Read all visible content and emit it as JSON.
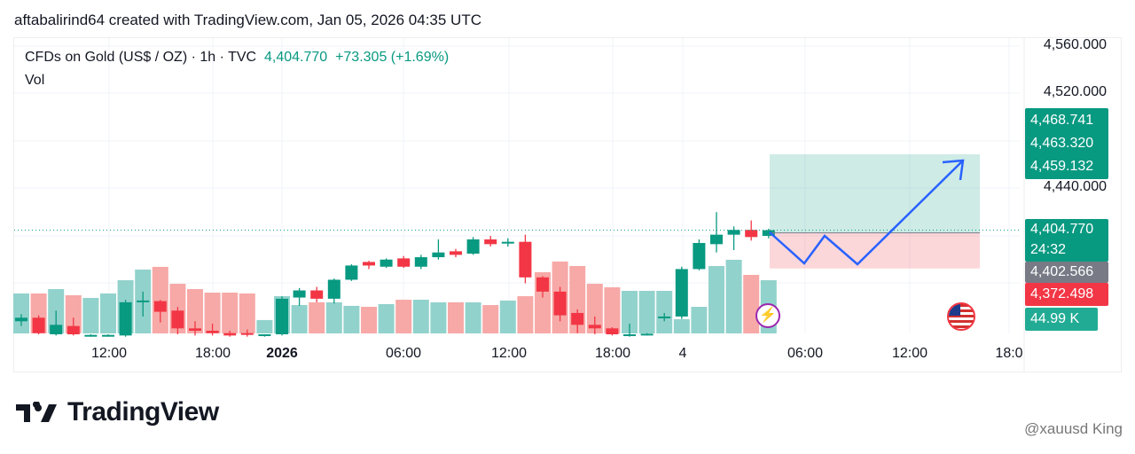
{
  "header": {
    "text": "aftabalirind64 created with TradingView.com, Jan 05, 2026 04:35 UTC"
  },
  "legend": {
    "symbol": "CFDs on Gold (US$ / OZ) · 1h · TVC",
    "price": "4,404.770",
    "change": "+73.305 (+1.69%)",
    "vol": "Vol"
  },
  "price_axis": [
    "4,560.000",
    "4,520.000",
    "4,440.000"
  ],
  "tags": {
    "target1": "4,468.741",
    "target2": "4,463.320",
    "target3": "4,459.132",
    "last": "4,404.770",
    "countdown": "24:32",
    "entry": "4,402.566",
    "stop": "4,372.498",
    "volume": "44.99 K"
  },
  "time_axis": [
    "12:00",
    "18:00",
    "2026",
    "06:00",
    "12:00",
    "18:00",
    "4",
    "06:00",
    "12:00",
    "18:0"
  ],
  "colors": {
    "up": "#089981",
    "down": "#f23645",
    "upVol": "#92d2cc",
    "downVol": "#f7a9a7",
    "arrow": "#2962ff"
  },
  "chart_data": {
    "type": "candlestick",
    "ylim": [
      4300,
      4560
    ],
    "candles": [
      [
        4328,
        4331,
        4334,
        4324
      ],
      [
        4331,
        4318,
        4333,
        4317
      ],
      [
        4317,
        4325,
        4337,
        4316
      ],
      [
        4324,
        4317,
        4331,
        4316
      ],
      [
        4316,
        4316.5,
        4317,
        4315
      ],
      [
        4316,
        4316.5,
        4317,
        4315
      ],
      [
        4316,
        4344,
        4346,
        4315
      ],
      [
        4345,
        4345.5,
        4353,
        4332
      ],
      [
        4345,
        4336,
        4346,
        4327
      ],
      [
        4337,
        4322,
        4340,
        4317
      ],
      [
        4322,
        4320,
        4328,
        4316
      ],
      [
        4320,
        4318,
        4326,
        4316
      ],
      [
        4318,
        4316,
        4320,
        4315
      ],
      [
        4318,
        4317,
        4321,
        4315
      ],
      [
        4316,
        4317,
        4317,
        4315
      ],
      [
        4317,
        4347,
        4349,
        4316
      ],
      [
        4348,
        4354,
        4356,
        4341
      ],
      [
        4354,
        4347,
        4357,
        4344
      ],
      [
        4347,
        4363,
        4364,
        4343
      ],
      [
        4363,
        4375,
        4376,
        4362
      ],
      [
        4378,
        4375,
        4379,
        4372
      ],
      [
        4374,
        4380,
        4381,
        4373
      ],
      [
        4381,
        4374,
        4383,
        4373
      ],
      [
        4374,
        4382,
        4384,
        4372
      ],
      [
        4382,
        4386,
        4397,
        4380
      ],
      [
        4387,
        4384,
        4389,
        4382
      ],
      [
        4385,
        4397,
        4399,
        4384
      ],
      [
        4397,
        4393,
        4400,
        4391
      ],
      [
        4394,
        4395,
        4398,
        4391
      ],
      [
        4395,
        4365,
        4401,
        4360
      ],
      [
        4365,
        4353,
        4366,
        4348
      ],
      [
        4353,
        4333,
        4357,
        4328
      ],
      [
        4335,
        4325,
        4338,
        4318
      ],
      [
        4325,
        4322,
        4332,
        4317
      ],
      [
        4322,
        4317,
        4323,
        4316
      ],
      [
        4316,
        4317,
        4326,
        4315
      ],
      [
        4317,
        4317.5,
        4318,
        4316
      ],
      [
        4331,
        4332,
        4335,
        4328
      ],
      [
        4332,
        4372,
        4374,
        4330
      ],
      [
        4372,
        4394,
        4397,
        4371
      ],
      [
        4393,
        4401,
        4420,
        4386
      ],
      [
        4401,
        4405,
        4408,
        4388
      ],
      [
        4405,
        4399,
        4413,
        4396
      ],
      [
        4400,
        4404.77,
        4406,
        4398
      ]
    ],
    "volumes_k": [
      33.8,
      33.8,
      37.5,
      32.3,
      30,
      33.8,
      45,
      54,
      56.3,
      42,
      37.5,
      34.5,
      34.5,
      33.8,
      11.3,
      31.5,
      24,
      26.3,
      26.3,
      23.3,
      22.5,
      24.8,
      28.5,
      28.5,
      26.3,
      26.3,
      26.3,
      24,
      27.8,
      31.5,
      51.8,
      60.8,
      57,
      42,
      39,
      36,
      36,
      36,
      12,
      22.5,
      57,
      62.3,
      49.5,
      45
    ],
    "position": {
      "entry": 4402.566,
      "target": 4468.741,
      "stop": 4372.498
    }
  },
  "logo": {
    "text": "TradingView"
  },
  "watermark": {
    "text": "@xauusd King"
  }
}
